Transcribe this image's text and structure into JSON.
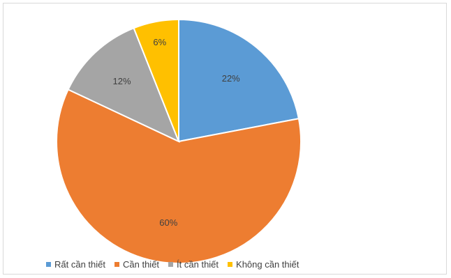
{
  "chart_data": {
    "type": "pie",
    "categories": [
      "Rất cần thiết",
      "Cần thiết",
      "Ít cần thiết",
      "Không cần thiết"
    ],
    "values": [
      22,
      60,
      12,
      6
    ],
    "data_labels": [
      "22%",
      "60%",
      "12%",
      "6%"
    ],
    "colors": [
      "#5b9bd5",
      "#ed7d31",
      "#a5a5a5",
      "#ffc000"
    ],
    "start_angle_deg": 0,
    "direction": "clockwise",
    "legend_position": "bottom"
  }
}
